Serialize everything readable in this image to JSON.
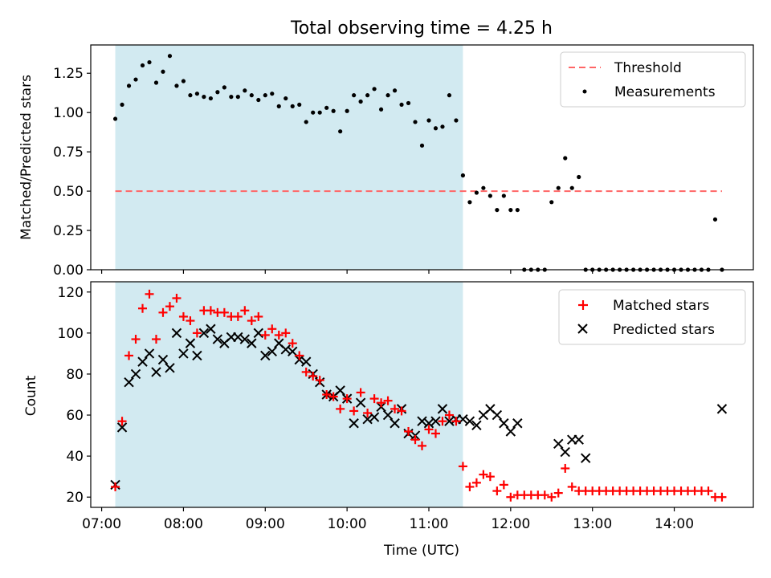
{
  "figure": {
    "title": "Total observing time = 4.25 h",
    "xlabel": "Time (UTC)",
    "span_color": "#add8e6"
  },
  "chart_data": [
    {
      "type": "scatter",
      "title": "Total observing time = 4.25 h",
      "xlabel": "",
      "ylabel": "Matched/Predicted stars",
      "x_axis": "time",
      "xlim": [
        "06:52",
        "14:58"
      ],
      "ylim": [
        0,
        1.43
      ],
      "yticks": [
        0.0,
        0.25,
        0.5,
        0.75,
        1.0,
        1.25
      ],
      "ytick_labels": [
        "0.00",
        "0.25",
        "0.50",
        "0.75",
        "1.00",
        "1.25"
      ],
      "highlight_span": [
        "07:10",
        "11:25"
      ],
      "legend": {
        "placement": "top-right",
        "entries": [
          "Threshold",
          "Measurements"
        ]
      },
      "threshold": {
        "name": "Threshold",
        "value": 0.5,
        "x": [
          "07:10",
          "14:35"
        ],
        "color": "#ff6666",
        "style": "dashed"
      },
      "series": [
        {
          "name": "Measurements",
          "color": "#000000",
          "marker": "dot",
          "x": [
            "07:10",
            "07:15",
            "07:20",
            "07:25",
            "07:30",
            "07:35",
            "07:40",
            "07:45",
            "07:50",
            "07:55",
            "08:00",
            "08:05",
            "08:10",
            "08:15",
            "08:20",
            "08:25",
            "08:30",
            "08:35",
            "08:40",
            "08:45",
            "08:50",
            "08:55",
            "09:00",
            "09:05",
            "09:10",
            "09:15",
            "09:20",
            "09:25",
            "09:30",
            "09:35",
            "09:40",
            "09:45",
            "09:50",
            "09:55",
            "10:00",
            "10:05",
            "10:10",
            "10:15",
            "10:20",
            "10:25",
            "10:30",
            "10:35",
            "10:40",
            "10:45",
            "10:50",
            "10:55",
            "11:00",
            "11:05",
            "11:10",
            "11:15",
            "11:20",
            "11:25",
            "11:30",
            "11:35",
            "11:40",
            "11:45",
            "11:50",
            "11:55",
            "12:00",
            "12:05",
            "12:10",
            "12:15",
            "12:20",
            "12:25",
            "12:30",
            "12:35",
            "12:40",
            "12:45",
            "12:50",
            "12:55",
            "13:00",
            "13:05",
            "13:10",
            "13:15",
            "13:20",
            "13:25",
            "13:30",
            "13:35",
            "13:40",
            "13:45",
            "13:50",
            "13:55",
            "14:00",
            "14:05",
            "14:10",
            "14:15",
            "14:20",
            "14:25",
            "14:30",
            "14:35"
          ],
          "y": [
            0.96,
            1.05,
            1.17,
            1.21,
            1.3,
            1.32,
            1.19,
            1.26,
            1.36,
            1.17,
            1.2,
            1.11,
            1.12,
            1.1,
            1.09,
            1.13,
            1.16,
            1.1,
            1.1,
            1.14,
            1.11,
            1.08,
            1.11,
            1.12,
            1.04,
            1.09,
            1.04,
            1.05,
            0.94,
            1.0,
            1.0,
            1.03,
            1.01,
            0.88,
            1.01,
            1.11,
            1.07,
            1.11,
            1.15,
            1.02,
            1.11,
            1.14,
            1.05,
            1.06,
            0.94,
            0.79,
            0.95,
            0.9,
            0.91,
            1.11,
            0.95,
            0.6,
            0.43,
            0.49,
            0.52,
            0.47,
            0.38,
            0.47,
            0.38,
            0.38,
            0.0,
            0.0,
            0.0,
            0.0,
            0.43,
            0.52,
            0.71,
            0.52,
            0.59,
            0.0,
            0.0,
            0.0,
            0.0,
            0.0,
            0.0,
            0.0,
            0.0,
            0.0,
            0.0,
            0.0,
            0.0,
            0.0,
            0.0,
            0.0,
            0.0,
            0.0,
            0.0,
            0.0,
            0.32,
            0.0
          ]
        }
      ]
    },
    {
      "type": "scatter",
      "xlabel": "Time (UTC)",
      "ylabel": "Count",
      "x_axis": "time",
      "xlim": [
        "06:52",
        "14:58"
      ],
      "ylim": [
        15,
        125
      ],
      "xticks": [
        "07:00",
        "08:00",
        "09:00",
        "10:00",
        "11:00",
        "12:00",
        "13:00",
        "14:00"
      ],
      "yticks": [
        20,
        40,
        60,
        80,
        100,
        120
      ],
      "highlight_span": [
        "07:10",
        "11:25"
      ],
      "legend": {
        "placement": "top-right",
        "entries": [
          "Matched stars",
          "Predicted stars"
        ]
      },
      "series": [
        {
          "name": "Matched stars",
          "color": "#ff0000",
          "marker": "plus",
          "x": [
            "07:10",
            "07:15",
            "07:20",
            "07:25",
            "07:30",
            "07:35",
            "07:40",
            "07:45",
            "07:50",
            "07:55",
            "08:00",
            "08:05",
            "08:10",
            "08:15",
            "08:20",
            "08:25",
            "08:30",
            "08:35",
            "08:40",
            "08:45",
            "08:50",
            "08:55",
            "09:00",
            "09:05",
            "09:10",
            "09:15",
            "09:20",
            "09:25",
            "09:30",
            "09:35",
            "09:40",
            "09:45",
            "09:50",
            "09:55",
            "10:00",
            "10:05",
            "10:10",
            "10:15",
            "10:20",
            "10:25",
            "10:30",
            "10:35",
            "10:40",
            "10:45",
            "10:50",
            "10:55",
            "11:00",
            "11:05",
            "11:10",
            "11:15",
            "11:20",
            "11:25",
            "11:30",
            "11:35",
            "11:40",
            "11:45",
            "11:50",
            "11:55",
            "12:00",
            "12:05",
            "12:10",
            "12:15",
            "12:20",
            "12:25",
            "12:30",
            "12:35",
            "12:40",
            "12:45",
            "12:50",
            "12:55",
            "13:00",
            "13:05",
            "13:10",
            "13:15",
            "13:20",
            "13:25",
            "13:30",
            "13:35",
            "13:40",
            "13:45",
            "13:50",
            "13:55",
            "14:00",
            "14:05",
            "14:10",
            "14:15",
            "14:20",
            "14:25",
            "14:30",
            "14:35"
          ],
          "y": [
            25,
            57,
            89,
            97,
            112,
            119,
            97,
            110,
            113,
            117,
            108,
            106,
            100,
            111,
            111,
            110,
            110,
            108,
            108,
            111,
            106,
            108,
            99,
            102,
            99,
            100,
            95,
            89,
            81,
            79,
            77,
            70,
            69,
            63,
            68,
            62,
            71,
            61,
            68,
            66,
            67,
            63,
            62,
            52,
            48,
            45,
            53,
            51,
            57,
            60,
            57,
            35,
            25,
            27,
            31,
            30,
            23,
            26,
            20,
            21,
            21,
            21,
            21,
            21,
            20,
            22,
            34,
            25,
            23,
            23,
            23,
            23,
            23,
            23,
            23,
            23,
            23,
            23,
            23,
            23,
            23,
            23,
            23,
            23,
            23,
            23,
            23,
            23,
            20,
            20
          ]
        },
        {
          "name": "Predicted stars",
          "color": "#000000",
          "marker": "x",
          "x": [
            "07:10",
            "07:15",
            "07:20",
            "07:25",
            "07:30",
            "07:35",
            "07:40",
            "07:45",
            "07:50",
            "07:55",
            "08:00",
            "08:05",
            "08:10",
            "08:15",
            "08:20",
            "08:25",
            "08:30",
            "08:35",
            "08:40",
            "08:45",
            "08:50",
            "08:55",
            "09:00",
            "09:05",
            "09:10",
            "09:15",
            "09:20",
            "09:25",
            "09:30",
            "09:35",
            "09:40",
            "09:45",
            "09:50",
            "09:55",
            "10:00",
            "10:05",
            "10:10",
            "10:15",
            "10:20",
            "10:25",
            "10:30",
            "10:35",
            "10:40",
            "10:45",
            "10:50",
            "10:55",
            "11:00",
            "11:05",
            "11:10",
            "11:15",
            "11:20",
            "11:25",
            "11:30",
            "11:35",
            "11:40",
            "11:45",
            "11:50",
            "11:55",
            "12:00",
            "12:05",
            "12:35",
            "12:40",
            "12:45",
            "12:50",
            "12:55",
            "14:35"
          ],
          "y": [
            26,
            54,
            76,
            80,
            86,
            90,
            81,
            87,
            83,
            100,
            90,
            95,
            89,
            100,
            102,
            97,
            95,
            98,
            98,
            97,
            95,
            100,
            89,
            91,
            95,
            92,
            91,
            87,
            86,
            80,
            76,
            70,
            69,
            72,
            68,
            56,
            66,
            58,
            59,
            64,
            60,
            56,
            63,
            51,
            50,
            57,
            56,
            57,
            63,
            57,
            58,
            58,
            57,
            55,
            60,
            63,
            60,
            56,
            52,
            56,
            46,
            42,
            48,
            48,
            39,
            63
          ]
        }
      ]
    }
  ]
}
